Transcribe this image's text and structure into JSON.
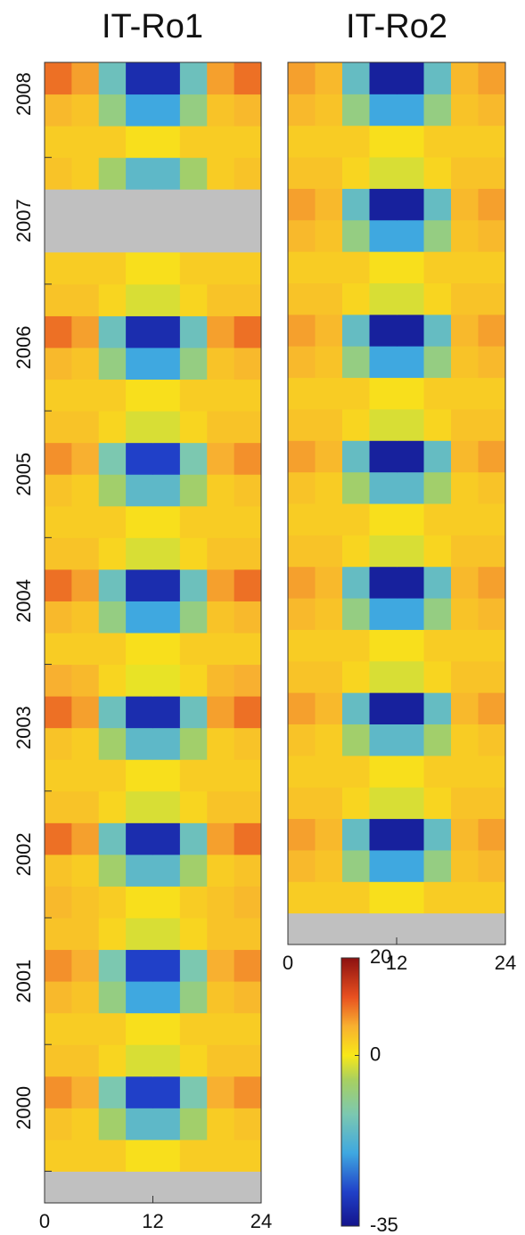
{
  "chart_data": [
    {
      "type": "heatmap",
      "title": "IT-Ro1",
      "missing_color": "#c0c0c0",
      "xbins": [
        0,
        3,
        6,
        9,
        12,
        15,
        18,
        21,
        24
      ],
      "xlim": [
        0,
        24
      ],
      "xticks": [
        0,
        12,
        24
      ],
      "ylim": [
        1999.75,
        2008.75
      ],
      "yticks": [
        2000,
        2001,
        2002,
        2003,
        2004,
        2005,
        2006,
        2007,
        2008
      ],
      "ybins": [
        2000,
        2000.25,
        2000.5,
        2000.75,
        2001,
        2001.25,
        2001.5,
        2001.75,
        2002,
        2002.25,
        2002.5,
        2002.75,
        2003,
        2003.25,
        2003.5,
        2003.75,
        2004,
        2004.25,
        2004.5,
        2004.75,
        2005,
        2005.25,
        2005.5,
        2005.75,
        2006,
        2006.25,
        2006.5,
        2006.75,
        2007,
        2007.25,
        2007.5,
        2007.75,
        2008,
        2008.25,
        2008.5,
        2008.75
      ],
      "z": [
        [
          3,
          3,
          3,
          1,
          1,
          3,
          3,
          3
        ],
        [
          4,
          3,
          -6,
          -16,
          -16,
          -6,
          3,
          4
        ],
        [
          8,
          6,
          -12,
          -28,
          -28,
          -12,
          6,
          8
        ],
        [
          4,
          4,
          2,
          -2,
          -2,
          2,
          4,
          4
        ],
        [
          3,
          3,
          3,
          1,
          1,
          3,
          3,
          3
        ],
        [
          5,
          4,
          -8,
          -20,
          -20,
          -8,
          4,
          5
        ],
        [
          8,
          6,
          -12,
          -28,
          -28,
          -12,
          6,
          8
        ],
        [
          4,
          4,
          2,
          -2,
          -2,
          2,
          4,
          4
        ],
        [
          5,
          4,
          3,
          1,
          1,
          3,
          4,
          5
        ],
        [
          4,
          3,
          -6,
          -16,
          -16,
          -6,
          3,
          4
        ],
        [
          10,
          7,
          -14,
          -31,
          -31,
          -14,
          7,
          10
        ],
        [
          4,
          4,
          2,
          -2,
          -2,
          2,
          4,
          4
        ],
        [
          3,
          3,
          3,
          1,
          1,
          3,
          3,
          3
        ],
        [
          4,
          3,
          -6,
          -16,
          -16,
          -6,
          3,
          4
        ],
        [
          10,
          7,
          -14,
          -31,
          -31,
          -14,
          7,
          10
        ],
        [
          6,
          5,
          2,
          -1,
          -1,
          2,
          5,
          6
        ],
        [
          3,
          3,
          3,
          1,
          1,
          3,
          3,
          3
        ],
        [
          5,
          4,
          -8,
          -20,
          -20,
          -8,
          4,
          5
        ],
        [
          10,
          7,
          -14,
          -31,
          -31,
          -14,
          7,
          10
        ],
        [
          4,
          4,
          2,
          -2,
          -2,
          2,
          4,
          4
        ],
        [
          3,
          3,
          3,
          1,
          1,
          3,
          3,
          3
        ],
        [
          4,
          3,
          -6,
          -16,
          -16,
          -6,
          3,
          4
        ],
        [
          8,
          6,
          -12,
          -28,
          -28,
          -12,
          6,
          8
        ],
        [
          4,
          4,
          2,
          -2,
          -2,
          2,
          4,
          4
        ],
        [
          3,
          3,
          3,
          1,
          1,
          3,
          3,
          3
        ],
        [
          5,
          4,
          -8,
          -20,
          -20,
          -8,
          4,
          5
        ],
        [
          10,
          7,
          -14,
          -31,
          -31,
          -14,
          7,
          10
        ],
        [
          4,
          4,
          2,
          -2,
          -2,
          2,
          4,
          4
        ],
        [
          3,
          3,
          3,
          1,
          1,
          3,
          3,
          3
        ],
        [
          null,
          null,
          null,
          null,
          null,
          null,
          null,
          null
        ],
        [
          null,
          null,
          null,
          null,
          null,
          null,
          null,
          null
        ],
        [
          4,
          3,
          -6,
          -16,
          -16,
          -6,
          3,
          4
        ],
        [
          3,
          3,
          3,
          1,
          1,
          3,
          3,
          3
        ],
        [
          5,
          4,
          -8,
          -20,
          -20,
          -8,
          4,
          5
        ],
        [
          10,
          7,
          -14,
          -31,
          -31,
          -14,
          7,
          10
        ]
      ]
    },
    {
      "type": "heatmap",
      "title": "IT-Ro2",
      "missing_color": "#c0c0c0",
      "xbins": [
        0,
        3,
        6,
        9,
        12,
        15,
        18,
        21,
        24
      ],
      "xlim": [
        0,
        24
      ],
      "xticks": [
        0,
        12,
        24
      ],
      "ylim": [
        2001.75,
        2008.75
      ],
      "ybins": [
        2002,
        2002.25,
        2002.5,
        2002.75,
        2003,
        2003.25,
        2003.5,
        2003.75,
        2004,
        2004.25,
        2004.5,
        2004.75,
        2005,
        2005.25,
        2005.5,
        2005.75,
        2006,
        2006.25,
        2006.5,
        2006.75,
        2007,
        2007.25,
        2007.5,
        2007.75,
        2008,
        2008.25,
        2008.5,
        2008.75
      ],
      "z": [
        [
          3,
          3,
          3,
          1,
          1,
          3,
          3,
          3
        ],
        [
          5,
          4,
          -8,
          -20,
          -20,
          -8,
          4,
          5
        ],
        [
          7,
          5,
          -15,
          -33,
          -33,
          -15,
          5,
          7
        ],
        [
          4,
          4,
          2,
          -2,
          -2,
          2,
          4,
          4
        ],
        [
          3,
          3,
          3,
          1,
          1,
          3,
          3,
          3
        ],
        [
          4,
          3,
          -6,
          -16,
          -16,
          -6,
          3,
          4
        ],
        [
          7,
          5,
          -15,
          -33,
          -33,
          -15,
          5,
          7
        ],
        [
          4,
          4,
          2,
          -2,
          -2,
          2,
          4,
          4
        ],
        [
          3,
          3,
          3,
          1,
          1,
          3,
          3,
          3
        ],
        [
          5,
          4,
          -8,
          -20,
          -20,
          -8,
          4,
          5
        ],
        [
          7,
          5,
          -15,
          -33,
          -33,
          -15,
          5,
          7
        ],
        [
          4,
          4,
          2,
          -2,
          -2,
          2,
          4,
          4
        ],
        [
          3,
          3,
          3,
          1,
          1,
          3,
          3,
          3
        ],
        [
          4,
          3,
          -6,
          -16,
          -16,
          -6,
          3,
          4
        ],
        [
          7,
          5,
          -15,
          -33,
          -33,
          -15,
          5,
          7
        ],
        [
          4,
          4,
          2,
          -2,
          -2,
          2,
          4,
          4
        ],
        [
          3,
          3,
          3,
          1,
          1,
          3,
          3,
          3
        ],
        [
          5,
          4,
          -8,
          -20,
          -20,
          -8,
          4,
          5
        ],
        [
          7,
          5,
          -15,
          -33,
          -33,
          -15,
          5,
          7
        ],
        [
          4,
          4,
          2,
          -2,
          -2,
          2,
          4,
          4
        ],
        [
          3,
          3,
          3,
          1,
          1,
          3,
          3,
          3
        ],
        [
          5,
          4,
          -8,
          -20,
          -20,
          -8,
          4,
          5
        ],
        [
          7,
          5,
          -15,
          -33,
          -33,
          -15,
          5,
          7
        ],
        [
          4,
          4,
          2,
          -2,
          -2,
          2,
          4,
          4
        ],
        [
          3,
          3,
          3,
          1,
          1,
          3,
          3,
          3
        ],
        [
          5,
          4,
          -8,
          -20,
          -20,
          -8,
          4,
          5
        ],
        [
          7,
          5,
          -15,
          -33,
          -33,
          -15,
          5,
          7
        ]
      ]
    }
  ],
  "colorbar": {
    "zlim": [
      -35,
      20
    ],
    "ticks": [
      20,
      0,
      -35
    ],
    "colors": [
      [
        -35,
        "#14148c"
      ],
      [
        -28,
        "#2040c8"
      ],
      [
        -20,
        "#3fa8e0"
      ],
      [
        -12,
        "#7cc8b0"
      ],
      [
        -5,
        "#a8d060"
      ],
      [
        0,
        "#f8e818"
      ],
      [
        6,
        "#f8b030"
      ],
      [
        12,
        "#e85020"
      ],
      [
        20,
        "#8c1010"
      ]
    ]
  }
}
